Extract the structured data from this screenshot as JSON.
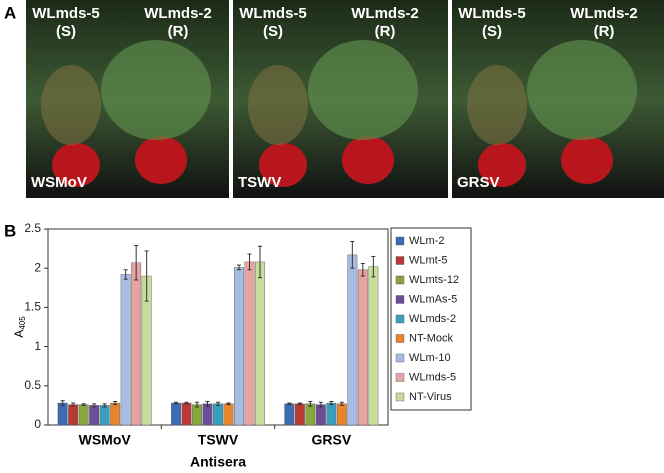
{
  "panel_a": {
    "label": "A",
    "panels": [
      {
        "left_plant": "WLmds-5",
        "left_tag": "(S)",
        "right_plant": "WLmds-2",
        "right_tag": "(R)",
        "virus": "WSMoV"
      },
      {
        "left_plant": "WLmds-5",
        "left_tag": "(S)",
        "right_plant": "WLmds-2",
        "right_tag": "(R)",
        "virus": "TSWV"
      },
      {
        "left_plant": "WLmds-5",
        "left_tag": "(S)",
        "right_plant": "WLmds-2",
        "right_tag": "(R)",
        "virus": "GRSV"
      }
    ]
  },
  "panel_b_label": "B",
  "chart_data": {
    "type": "bar",
    "xlabel": "Antisera",
    "ylabel": "A",
    "ylabel_subscript": "405",
    "categories": [
      "WSMoV",
      "TSWV",
      "GRSV"
    ],
    "ylim": [
      0,
      2.5
    ],
    "yticks": [
      0,
      0.5,
      1,
      1.5,
      2,
      2.5
    ],
    "series": [
      {
        "name": "WLm-2",
        "color": "#3c6cb4",
        "values": [
          0.28,
          0.28,
          0.27
        ],
        "errors": [
          0.03,
          0.01,
          0.01
        ]
      },
      {
        "name": "WLmt-5",
        "color": "#b93a34",
        "values": [
          0.26,
          0.28,
          0.27
        ],
        "errors": [
          0.02,
          0.01,
          0.01
        ]
      },
      {
        "name": "WLmts-12",
        "color": "#86a63e",
        "values": [
          0.26,
          0.26,
          0.27
        ],
        "errors": [
          0.01,
          0.03,
          0.03
        ]
      },
      {
        "name": "WLmAs-5",
        "color": "#6a4f98",
        "values": [
          0.25,
          0.27,
          0.26
        ],
        "errors": [
          0.02,
          0.03,
          0.03
        ]
      },
      {
        "name": "WLmds-2",
        "color": "#3a9fbe",
        "values": [
          0.25,
          0.27,
          0.28
        ],
        "errors": [
          0.02,
          0.02,
          0.02
        ]
      },
      {
        "name": "NT-Mock",
        "color": "#e7852c",
        "values": [
          0.28,
          0.27,
          0.27
        ],
        "errors": [
          0.02,
          0.01,
          0.02
        ]
      },
      {
        "name": "WLm-10",
        "color": "#a6bce2",
        "values": [
          1.92,
          2.01,
          2.17
        ],
        "errors": [
          0.06,
          0.03,
          0.17
        ]
      },
      {
        "name": "WLmds-5",
        "color": "#e6a3a1",
        "values": [
          2.07,
          2.08,
          1.98
        ],
        "errors": [
          0.22,
          0.1,
          0.08
        ]
      },
      {
        "name": "NT-Virus",
        "color": "#c8dc9c",
        "values": [
          1.9,
          2.08,
          2.02
        ],
        "errors": [
          0.32,
          0.2,
          0.13
        ]
      }
    ]
  }
}
